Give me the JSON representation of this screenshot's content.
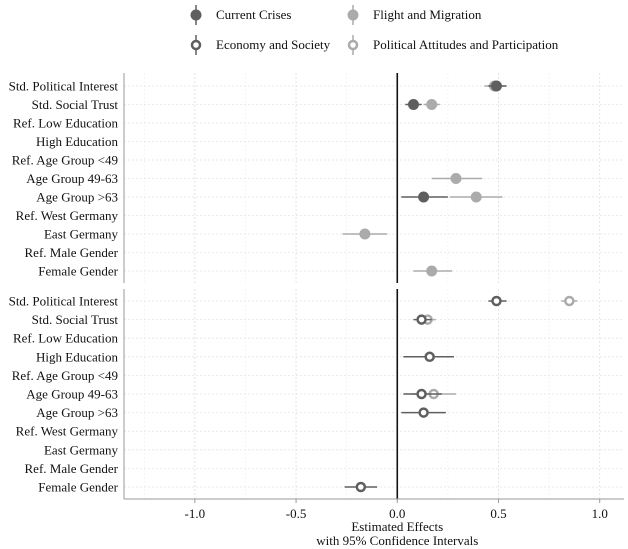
{
  "chart_data": {
    "type": "scatter",
    "subtype": "coefficient-plot",
    "xlabel": [
      "Estimated Effects",
      "with 95% Confidence Intervals"
    ],
    "xlim": [
      -1.35,
      1.12
    ],
    "xticks": [
      -1.0,
      -0.5,
      0.0,
      0.5,
      1.0
    ],
    "xtick_labels": [
      "-1.0",
      "-0.5",
      "0.0",
      "0.5",
      "1.0"
    ],
    "legend_position": "top",
    "legend": [
      {
        "key": "current",
        "label": "Current Crises",
        "color": "#5f5f5f",
        "marker": "filled"
      },
      {
        "key": "flight",
        "label": "Flight and Migration",
        "color": "#ababab",
        "marker": "filled"
      },
      {
        "key": "economy",
        "label": "Economy and Society",
        "color": "#5f5f5f",
        "marker": "hollow"
      },
      {
        "key": "political",
        "label": "Political Attitudes and Participation",
        "color": "#ababab",
        "marker": "hollow"
      }
    ],
    "panels": [
      {
        "name": "top",
        "labels": [
          "Std. Political Interest",
          "Std. Social Trust",
          "Ref. Low Education",
          "High Education",
          "Ref. Age Group <49",
          "Age Group 49-63",
          "Age Group >63",
          "Ref. West Germany",
          "East Germany",
          "Ref. Male Gender",
          "Female Gender"
        ],
        "series": [
          {
            "key": "flight",
            "points": [
              {
                "row": 0,
                "est": 0.48,
                "lo": 0.43,
                "hi": 0.53
              },
              {
                "row": 1,
                "est": 0.17,
                "lo": 0.13,
                "hi": 0.21
              },
              {
                "row": 5,
                "est": 0.29,
                "lo": 0.17,
                "hi": 0.42
              },
              {
                "row": 6,
                "est": 0.39,
                "lo": 0.26,
                "hi": 0.52
              },
              {
                "row": 8,
                "est": -0.16,
                "lo": -0.27,
                "hi": -0.05
              },
              {
                "row": 10,
                "est": 0.17,
                "lo": 0.08,
                "hi": 0.27
              }
            ]
          },
          {
            "key": "current",
            "points": [
              {
                "row": 0,
                "est": 0.49,
                "lo": 0.45,
                "hi": 0.54
              },
              {
                "row": 1,
                "est": 0.08,
                "lo": 0.04,
                "hi": 0.12
              },
              {
                "row": 6,
                "est": 0.13,
                "lo": 0.02,
                "hi": 0.25
              }
            ]
          }
        ]
      },
      {
        "name": "bottom",
        "labels": [
          "Std. Political Interest",
          "Std. Social Trust",
          "Ref. Low Education",
          "High Education",
          "Ref. Age Group <49",
          "Age Group 49-63",
          "Age Group >63",
          "Ref. West Germany",
          "East Germany",
          "Ref. Male Gender",
          "Female Gender"
        ],
        "series": [
          {
            "key": "political",
            "points": [
              {
                "row": 0,
                "est": 0.85,
                "lo": 0.81,
                "hi": 0.89
              },
              {
                "row": 1,
                "est": 0.15,
                "lo": 0.11,
                "hi": 0.19
              },
              {
                "row": 5,
                "est": 0.18,
                "lo": 0.07,
                "hi": 0.29
              }
            ]
          },
          {
            "key": "economy",
            "points": [
              {
                "row": 0,
                "est": 0.49,
                "lo": 0.45,
                "hi": 0.54
              },
              {
                "row": 1,
                "est": 0.12,
                "lo": 0.08,
                "hi": 0.17
              },
              {
                "row": 3,
                "est": 0.16,
                "lo": 0.03,
                "hi": 0.28
              },
              {
                "row": 5,
                "est": 0.12,
                "lo": 0.03,
                "hi": 0.22
              },
              {
                "row": 6,
                "est": 0.13,
                "lo": 0.02,
                "hi": 0.24
              },
              {
                "row": 10,
                "est": -0.18,
                "lo": -0.26,
                "hi": -0.1
              }
            ]
          }
        ]
      }
    ]
  }
}
